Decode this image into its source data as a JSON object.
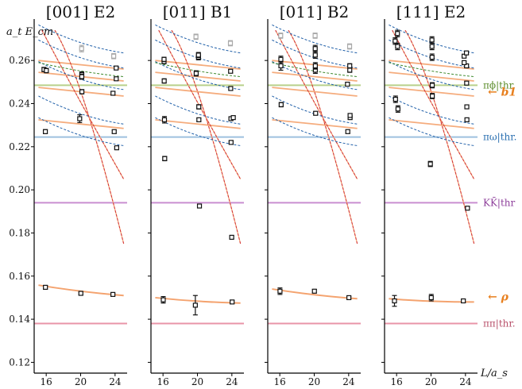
{
  "chart_data": {
    "type": "scatter",
    "ylabel": "a_t E_cm",
    "xlabel": "L/a_s",
    "ylim": [
      0.115,
      0.277
    ],
    "xlim": [
      14.6,
      25.4
    ],
    "yticks": [
      "0.12",
      "0.14",
      "0.16",
      "0.18",
      "0.20",
      "0.22",
      "0.24",
      "0.26"
    ],
    "xticks": [
      "16",
      "20",
      "24"
    ],
    "thresholds": [
      {
        "label": "πϕ|thr.",
        "value": 0.2485,
        "color": "#b9d08b"
      },
      {
        "label": "πω|thr.",
        "value": 0.2245,
        "color": "#9ec0df"
      },
      {
        "label": "KK̄|thr",
        "value": 0.194,
        "color": "#c98fd0"
      },
      {
        "label": "ππ|thr.",
        "value": 0.138,
        "color": "#e995a8"
      }
    ],
    "resonance_labels": [
      {
        "label": "← b1",
        "y": 0.2455,
        "color": "#e8801f"
      },
      {
        "label": "← ρ",
        "y": 0.1505,
        "color": "#e8801f"
      }
    ],
    "panels": [
      {
        "title": "[001] E2",
        "points": [
          {
            "x": 16,
            "y": 0.1548,
            "err": 0.0008
          },
          {
            "x": 20,
            "y": 0.152,
            "err": 0.0006
          },
          {
            "x": 24,
            "y": 0.1515,
            "err": 0.0005
          },
          {
            "x": 16,
            "y": 0.227,
            "err": 0.0009
          },
          {
            "x": 16,
            "y": 0.2558,
            "err": 0.001
          },
          {
            "x": 16,
            "y": 0.2553,
            "err": 0.001
          },
          {
            "x": 20,
            "y": 0.233,
            "err": 0.0018
          },
          {
            "x": 20,
            "y": 0.2455,
            "err": 0.001
          },
          {
            "x": 20,
            "y": 0.2535,
            "err": 0.0012
          },
          {
            "x": 20,
            "y": 0.2525,
            "err": 0.0012
          },
          {
            "x": 24,
            "y": 0.2195,
            "err": 0.0006
          },
          {
            "x": 24,
            "y": 0.227,
            "err": 0.0007
          },
          {
            "x": 24,
            "y": 0.2448,
            "err": 0.0008
          },
          {
            "x": 24,
            "y": 0.2515,
            "err": 0.0008
          },
          {
            "x": 24,
            "y": 0.2565,
            "err": 0.0008
          }
        ],
        "grey_points": [
          {
            "x": 20,
            "y": 0.2655,
            "err": 0.0015
          },
          {
            "x": 24,
            "y": 0.262,
            "err": 0.0012
          }
        ]
      },
      {
        "title": "[011] B1",
        "points": [
          {
            "x": 16,
            "y": 0.149,
            "err": 0.0015
          },
          {
            "x": 20,
            "y": 0.1465,
            "err": 0.0045
          },
          {
            "x": 24,
            "y": 0.148,
            "err": 0.0007
          },
          {
            "x": 16,
            "y": 0.2145,
            "err": 0.001
          },
          {
            "x": 20,
            "y": 0.1925,
            "err": 0.0008
          },
          {
            "x": 24,
            "y": 0.178,
            "err": 0.0006
          },
          {
            "x": 16,
            "y": 0.2325,
            "err": 0.0015
          },
          {
            "x": 16,
            "y": 0.2505,
            "err": 0.001
          },
          {
            "x": 16,
            "y": 0.2595,
            "err": 0.001
          },
          {
            "x": 16,
            "y": 0.2605,
            "err": 0.001
          },
          {
            "x": 20,
            "y": 0.2325,
            "err": 0.0008
          },
          {
            "x": 20,
            "y": 0.2385,
            "err": 0.001
          },
          {
            "x": 20,
            "y": 0.254,
            "err": 0.0012
          },
          {
            "x": 20,
            "y": 0.2615,
            "err": 0.0012
          },
          {
            "x": 20,
            "y": 0.2625,
            "err": 0.0012
          },
          {
            "x": 24,
            "y": 0.222,
            "err": 0.0005
          },
          {
            "x": 24,
            "y": 0.233,
            "err": 0.0007
          },
          {
            "x": 24,
            "y": 0.2335,
            "err": 0.0007
          },
          {
            "x": 24,
            "y": 0.247,
            "err": 0.0007
          },
          {
            "x": 24,
            "y": 0.255,
            "err": 0.0008
          }
        ],
        "grey_points": [
          {
            "x": 20,
            "y": 0.271,
            "err": 0.0012
          },
          {
            "x": 24,
            "y": 0.268,
            "err": 0.0012
          }
        ]
      },
      {
        "title": "[011] B2",
        "points": [
          {
            "x": 16,
            "y": 0.153,
            "err": 0.0015
          },
          {
            "x": 20,
            "y": 0.153,
            "err": 0.0008
          },
          {
            "x": 24,
            "y": 0.15,
            "err": 0.0006
          },
          {
            "x": 16,
            "y": 0.2395,
            "err": 0.001
          },
          {
            "x": 16,
            "y": 0.2575,
            "err": 0.002
          },
          {
            "x": 16,
            "y": 0.2605,
            "err": 0.0015
          },
          {
            "x": 20,
            "y": 0.2355,
            "err": 0.0008
          },
          {
            "x": 20,
            "y": 0.2555,
            "err": 0.0015
          },
          {
            "x": 20,
            "y": 0.2575,
            "err": 0.0015
          },
          {
            "x": 20,
            "y": 0.2625,
            "err": 0.0015
          },
          {
            "x": 20,
            "y": 0.2655,
            "err": 0.0015
          },
          {
            "x": 24,
            "y": 0.227,
            "err": 0.0007
          },
          {
            "x": 24,
            "y": 0.2335,
            "err": 0.0008
          },
          {
            "x": 24,
            "y": 0.2345,
            "err": 0.0008
          },
          {
            "x": 24,
            "y": 0.249,
            "err": 0.0008
          },
          {
            "x": 24,
            "y": 0.2555,
            "err": 0.001
          },
          {
            "x": 24,
            "y": 0.2575,
            "err": 0.001
          }
        ],
        "grey_points": [
          {
            "x": 16,
            "y": 0.2715,
            "err": 0.0012
          },
          {
            "x": 20,
            "y": 0.2715,
            "err": 0.0012
          },
          {
            "x": 24,
            "y": 0.2665,
            "err": 0.0012
          }
        ]
      },
      {
        "title": "[111] E2",
        "points": [
          {
            "x": 16,
            "y": 0.1485,
            "err": 0.0025
          },
          {
            "x": 20,
            "y": 0.15,
            "err": 0.0015
          },
          {
            "x": 24,
            "y": 0.1485,
            "err": 0.0008
          },
          {
            "x": 16,
            "y": 0.2375,
            "err": 0.0015
          },
          {
            "x": 16,
            "y": 0.242,
            "err": 0.0015
          },
          {
            "x": 16,
            "y": 0.2665,
            "err": 0.0015
          },
          {
            "x": 16,
            "y": 0.269,
            "err": 0.0015
          },
          {
            "x": 16,
            "y": 0.2725,
            "err": 0.0015
          },
          {
            "x": 20,
            "y": 0.212,
            "err": 0.0012
          },
          {
            "x": 20,
            "y": 0.2435,
            "err": 0.0012
          },
          {
            "x": 20,
            "y": 0.2485,
            "err": 0.0012
          },
          {
            "x": 20,
            "y": 0.2615,
            "err": 0.0015
          },
          {
            "x": 20,
            "y": 0.2665,
            "err": 0.0015
          },
          {
            "x": 20,
            "y": 0.2695,
            "err": 0.0015
          },
          {
            "x": 24,
            "y": 0.1915,
            "err": 0.0008
          },
          {
            "x": 24,
            "y": 0.2325,
            "err": 0.0008
          },
          {
            "x": 24,
            "y": 0.2385,
            "err": 0.0008
          },
          {
            "x": 24,
            "y": 0.2495,
            "err": 0.0008
          },
          {
            "x": 24,
            "y": 0.2575,
            "err": 0.0008
          },
          {
            "x": 24,
            "y": 0.259,
            "err": 0.0008
          },
          {
            "x": 24,
            "y": 0.262,
            "err": 0.0008
          },
          {
            "x": 24,
            "y": 0.2635,
            "err": 0.0008
          }
        ],
        "grey_points": []
      }
    ]
  }
}
